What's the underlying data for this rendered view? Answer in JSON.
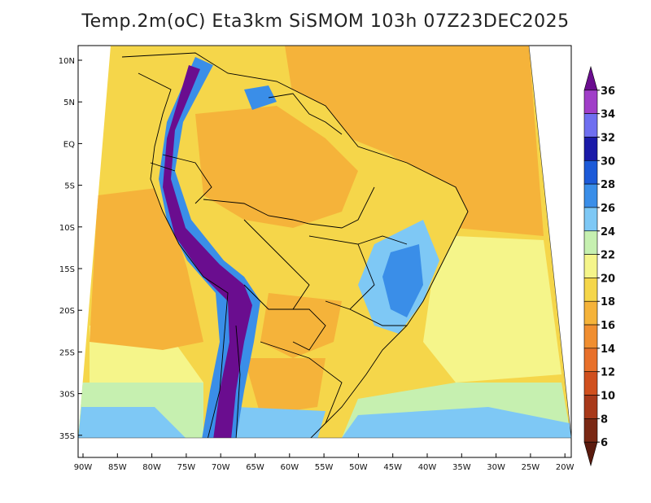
{
  "title": "Temp.2m(oC) Eta3km SiSMOM 103h 07Z23DEC2025",
  "lat_ticks": [
    "10N",
    "5N",
    "EQ",
    "5S",
    "10S",
    "15S",
    "20S",
    "25S",
    "30S",
    "35S"
  ],
  "lon_ticks": [
    "90W",
    "85W",
    "80W",
    "75W",
    "70W",
    "65W",
    "60W",
    "55W",
    "50W",
    "45W",
    "40W",
    "35W",
    "30W",
    "25W",
    "20W"
  ],
  "colorbar": {
    "levels": [
      "6",
      "8",
      "10",
      "12",
      "14",
      "16",
      "18",
      "20",
      "22",
      "24",
      "26",
      "28",
      "30",
      "32",
      "34",
      "36"
    ],
    "colors": [
      "#6a0d8f",
      "#a03ec8",
      "#6f6ff0",
      "#1a1aa8",
      "#1c5ad8",
      "#3a8ee8",
      "#7ec8f5",
      "#c6f0b0",
      "#f5f58a",
      "#f5d64a",
      "#f5b33a",
      "#f08e30",
      "#e8702a",
      "#d0501e",
      "#a8391a",
      "#7a2814",
      "#5a1a0e"
    ]
  },
  "palette": {
    "ocean_warm": "#f5b33a",
    "ocean_mild": "#f5d64a",
    "ocean_pale": "#f5f58a",
    "ocean_cool": "#c6f0b0",
    "ocean_cold": "#7ec8f5",
    "land_hot": "#f5b33a",
    "land_warm": "#f5d64a",
    "andes_cold": "#6a0d8f",
    "andes_cool": "#3a8ee8",
    "highlands": "#7ec8f5",
    "border": "#000000"
  }
}
